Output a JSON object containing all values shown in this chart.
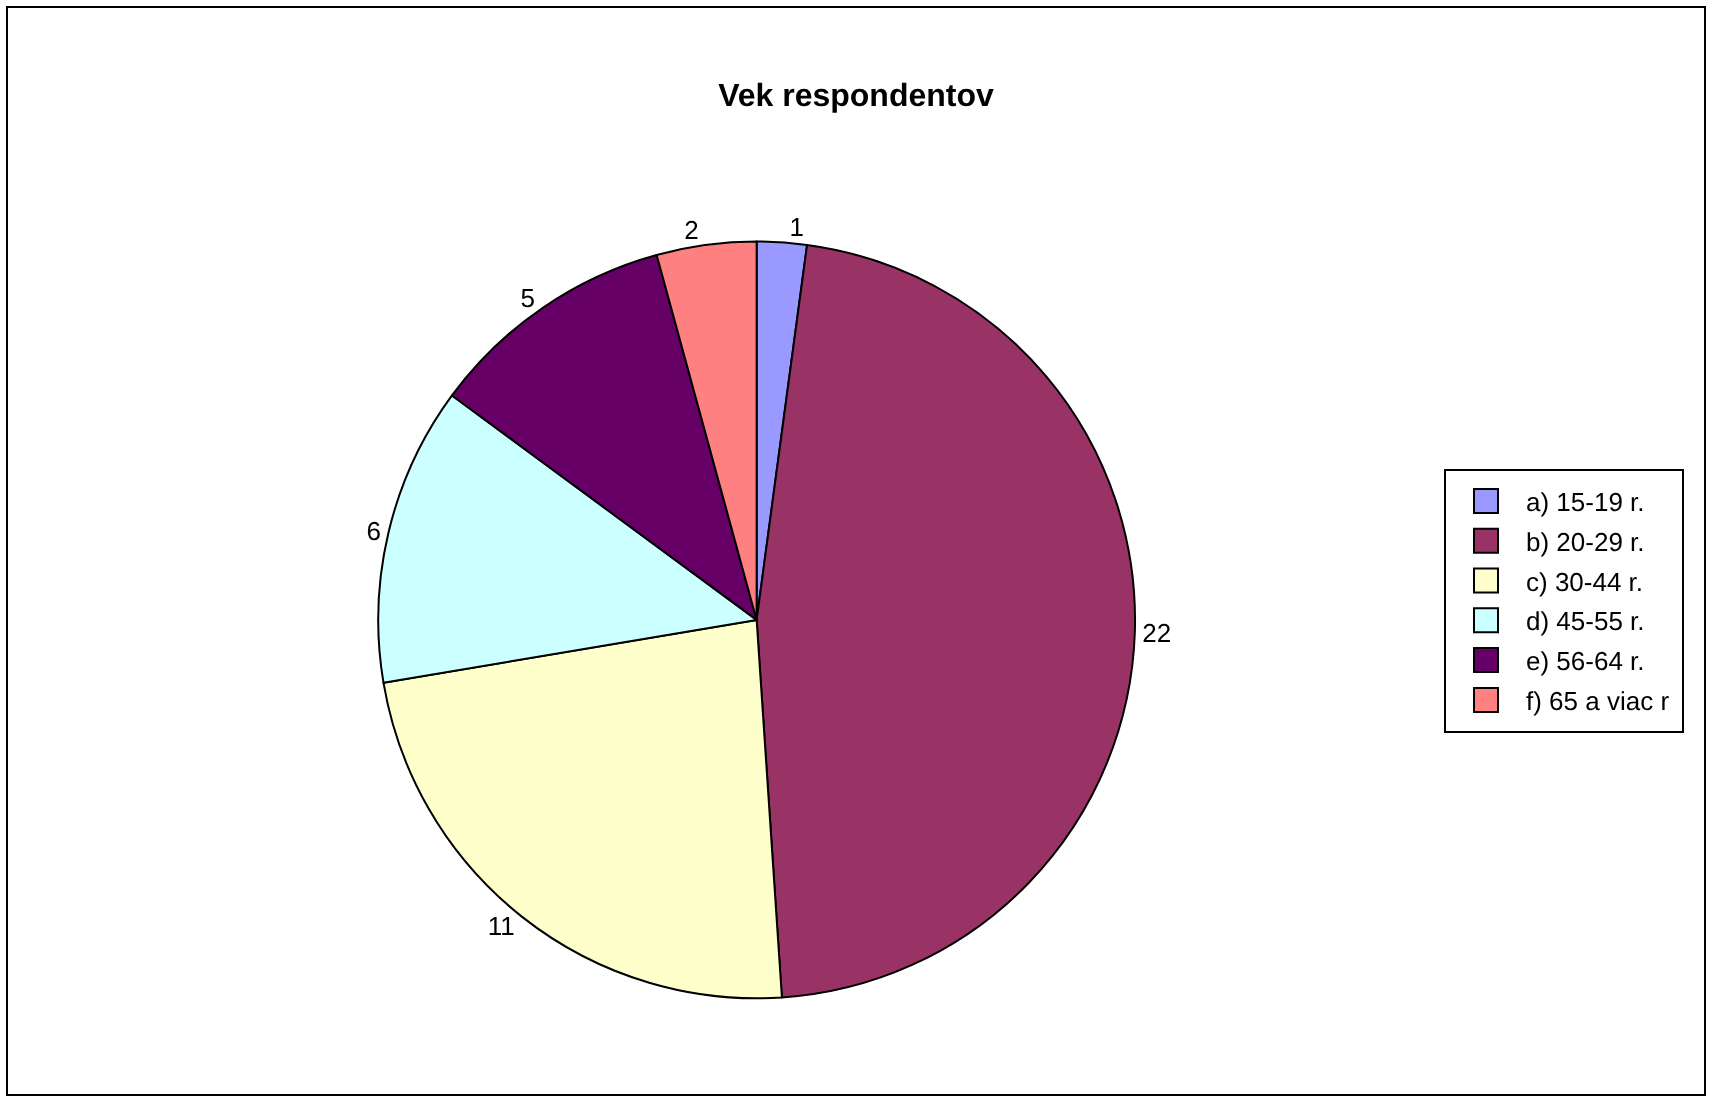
{
  "chart_data": {
    "type": "pie",
    "title": "Vek respondentov",
    "categories": [
      "a) 15-19 r.",
      "b) 20-29 r.",
      "c) 30-44 r.",
      "d) 45-55 r.",
      "e) 56-64 r.",
      "f) 65 a viac r"
    ],
    "values": [
      1,
      22,
      11,
      6,
      5,
      2
    ],
    "colors": [
      "#9999ff",
      "#993366",
      "#ffffcc",
      "#ccffff",
      "#660066",
      "#ff8080"
    ],
    "data_labels": true,
    "legend": "right"
  }
}
